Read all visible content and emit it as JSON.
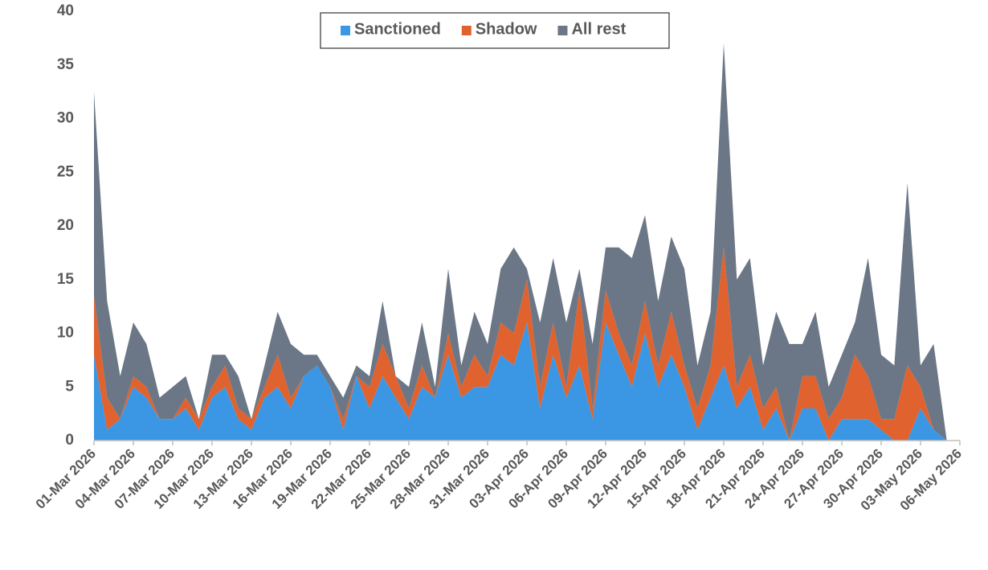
{
  "chart_data": {
    "type": "stacked_area",
    "categories": [
      "01-Mar 2026",
      null,
      null,
      "04-Mar 2026",
      null,
      null,
      "07-Mar 2026",
      null,
      null,
      "10-Mar 2026",
      null,
      null,
      "13-Mar 2026",
      null,
      null,
      "16-Mar 2026",
      null,
      null,
      "19-Mar 2026",
      null,
      null,
      "22-Mar 2026",
      null,
      null,
      "25-Mar 2026",
      null,
      null,
      "28-Mar 2026",
      null,
      null,
      "31-Mar 2026",
      null,
      null,
      "03-Apr 2026",
      null,
      null,
      "06-Apr 2026",
      null,
      null,
      "09-Apr 2026",
      null,
      null,
      "12-Apr 2026",
      null,
      null,
      "15-Apr 2026",
      null,
      null,
      "18-Apr 2026",
      null,
      null,
      "21-Apr 2026",
      null,
      null,
      "24-Apr 2026",
      null,
      null,
      "27-Apr 2026",
      null,
      null,
      "30-Apr 2026",
      null,
      null,
      "03-May 2026",
      null,
      null,
      "06-May 2026"
    ],
    "series": [
      {
        "name": "Sanctioned",
        "color": "#3b97e3",
        "values": [
          8,
          1,
          2,
          5,
          4,
          2,
          2,
          3,
          1,
          4,
          5,
          2,
          1,
          4,
          5,
          3,
          6,
          7,
          5,
          1,
          6,
          3,
          6,
          4,
          2,
          5,
          4,
          8,
          4,
          5,
          5,
          8,
          7,
          11,
          3,
          8,
          4,
          7,
          2,
          11,
          8,
          5,
          10,
          5,
          8,
          5,
          1,
          4,
          7,
          3,
          5,
          1,
          3,
          0,
          3,
          3,
          0,
          2,
          2,
          2,
          1,
          0,
          0,
          3,
          1,
          0,
          null
        ]
      },
      {
        "name": "Shadow",
        "color": "#e0622e",
        "values": [
          5.5,
          3,
          0,
          1,
          1,
          0,
          0,
          1,
          1,
          1,
          2,
          1,
          1,
          1,
          3,
          1,
          0,
          0,
          0,
          1,
          0,
          2,
          3,
          2,
          1,
          2,
          0,
          2,
          1,
          3,
          1,
          3,
          3,
          4,
          2,
          3,
          1,
          7,
          1,
          3,
          2,
          2,
          3,
          2,
          4,
          2,
          2,
          3,
          11,
          2,
          3,
          2,
          2,
          0,
          3,
          3,
          2,
          2,
          6,
          4,
          1,
          2,
          7,
          2,
          0,
          0,
          null
        ]
      },
      {
        "name": "All rest",
        "color": "#6b7786",
        "values": [
          19,
          9,
          4,
          5,
          4,
          2,
          3,
          2,
          0,
          3,
          1,
          3,
          0,
          2,
          4,
          5,
          2,
          1,
          1,
          2,
          1,
          1,
          4,
          0,
          2,
          4,
          1,
          6,
          2,
          4,
          3,
          5,
          8,
          1,
          6,
          6,
          6,
          2,
          6,
          4,
          8,
          10,
          8,
          6,
          7,
          9,
          4,
          5,
          19,
          10,
          9,
          4,
          7,
          9,
          3,
          6,
          3,
          4,
          3,
          11,
          6,
          5,
          17,
          2,
          8,
          0,
          null
        ]
      }
    ],
    "ylim": [
      0,
      40
    ],
    "yticks": [
      0,
      5,
      10,
      15,
      20,
      25,
      30,
      35,
      40
    ],
    "legend": "top"
  }
}
